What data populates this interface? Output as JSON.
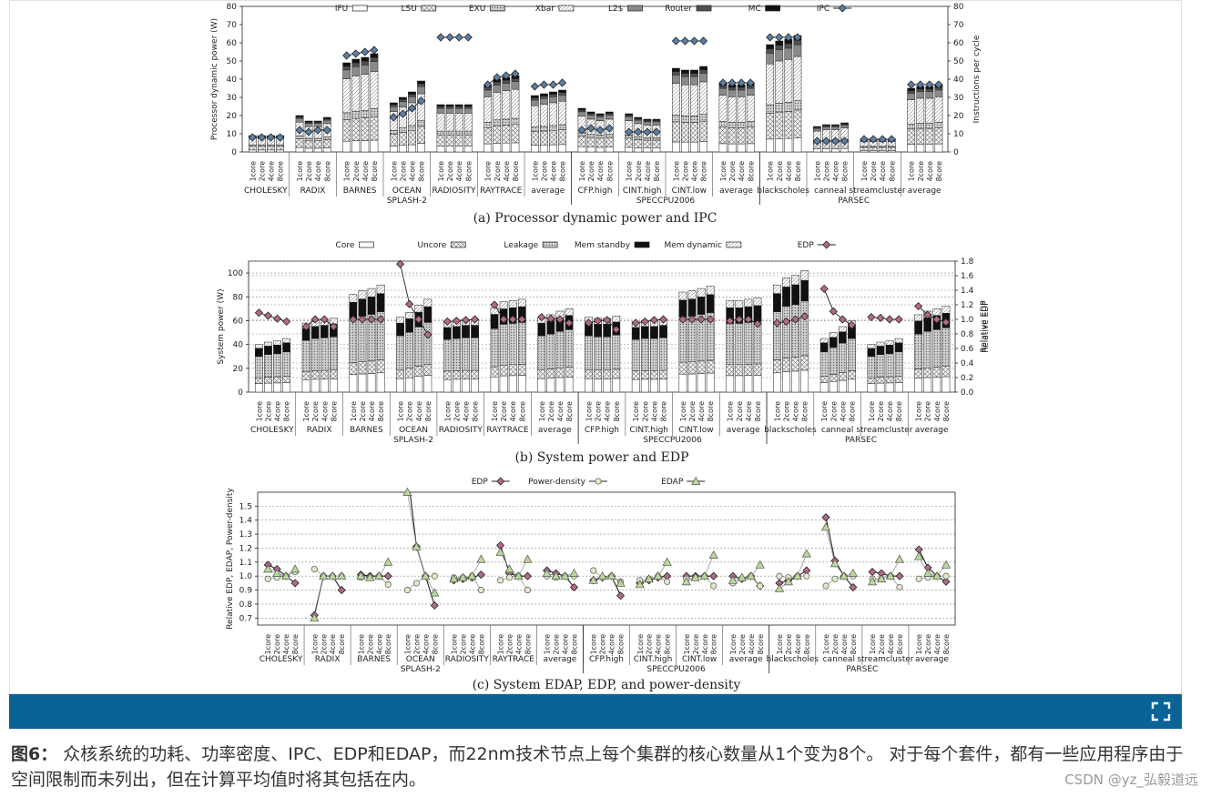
{
  "caption": {
    "label": "图6：",
    "text": " 众核系统的功耗、功率密度、IPC、EDP和EDAP，而22nm技术节点上每个集群的核心数量从1个变为8个。 对于每个套件，都有一些应用程序由于空间限制而未列出，但在计算平均值时将其包括在内。"
  },
  "watermark": "CSDN @yz_弘毅道远",
  "toolbar": {
    "fullscreen_icon": "fullscreen-icon"
  },
  "chart_data": [
    {
      "id": "a",
      "type": "bar",
      "title": "(a) Processor dynamic power and IPC",
      "ylabel": "Processor dynamic power (W)",
      "y2label": "Instructions per cycle",
      "ylim": [
        0,
        80
      ],
      "y2lim": [
        0,
        80
      ],
      "yticks": [
        0,
        10,
        20,
        30,
        40,
        50,
        60,
        70,
        80
      ],
      "y2ticks": [
        0,
        10,
        20,
        30,
        40,
        50,
        60,
        70,
        80
      ],
      "grid": false,
      "legend_position": "top",
      "core_labels": [
        "1core",
        "2core",
        "4core",
        "8core"
      ],
      "categories": [
        "CHOLESKY",
        "RADIX",
        "BARNES",
        "OCEAN",
        "RADIOSITY",
        "RAYTRACE",
        "average",
        "CFP.high",
        "CINT.high",
        "CINT.low",
        "average",
        "blackscholes",
        "canneal",
        "streamcluster",
        "average"
      ],
      "suites": [
        {
          "name": "SPLASH-2",
          "from": 0,
          "to": 6
        },
        {
          "name": "SPECCPU2006",
          "from": 7,
          "to": 10
        },
        {
          "name": "PARSEC",
          "from": 11,
          "to": 14
        }
      ],
      "series_names": [
        "IFU",
        "LSU",
        "EXU",
        "Xbar",
        "L2$",
        "Router",
        "MC"
      ],
      "series_colors": [
        "#ffffff",
        "#d8d8d8",
        "#b8b8b8",
        "#eaeaea",
        "#8a8a8a",
        "#505050",
        "#111111"
      ],
      "series_patterns": [
        "plain",
        "cross",
        "dots",
        "diag",
        "solid",
        "solid",
        "solid"
      ],
      "line_name": "IPC",
      "totals": [
        [
          9,
          9,
          9,
          9
        ],
        [
          20,
          17,
          17,
          19
        ],
        [
          49,
          51,
          52,
          54
        ],
        [
          27,
          30,
          33,
          39
        ],
        [
          26,
          26,
          26,
          26
        ],
        [
          37,
          40,
          41,
          42
        ],
        [
          31,
          32,
          33,
          34
        ],
        [
          24,
          22,
          21,
          22
        ],
        [
          21,
          19,
          18,
          18
        ],
        [
          46,
          45,
          45,
          47
        ],
        [
          38,
          37,
          37,
          38
        ],
        [
          59,
          61,
          62,
          64
        ],
        [
          14,
          15,
          15,
          16
        ],
        [
          7,
          7,
          7,
          7
        ],
        [
          35,
          36,
          36,
          37
        ]
      ],
      "ipc": [
        [
          8,
          8,
          8,
          8
        ],
        [
          12,
          11,
          12,
          12
        ],
        [
          53,
          54,
          55,
          56
        ],
        [
          19,
          21,
          24,
          28
        ],
        [
          63,
          63,
          63,
          63
        ],
        [
          37,
          41,
          42,
          43
        ],
        [
          36,
          37,
          37,
          38
        ],
        [
          12,
          13,
          12,
          13
        ],
        [
          11,
          11,
          11,
          11
        ],
        [
          61,
          61,
          61,
          61
        ],
        [
          38,
          38,
          38,
          38
        ],
        [
          63,
          63,
          63,
          63
        ],
        [
          6,
          6,
          6,
          6
        ],
        [
          7,
          7,
          7,
          7
        ],
        [
          37,
          37,
          37,
          37
        ]
      ]
    },
    {
      "id": "b",
      "type": "bar",
      "title": "(b) System power and EDP",
      "ylabel": "System power (W)",
      "y2label": "Relative EDP",
      "ylim": [
        0,
        110
      ],
      "yticks": [
        0,
        20,
        40,
        60,
        80,
        100
      ],
      "y2lim": [
        0,
        1.8
      ],
      "y2ticks": [
        "0.0",
        "0.2",
        "0.4",
        "0.6",
        "0.8",
        "1.0",
        "1.2",
        "1.4",
        "1.6",
        "1.8"
      ],
      "grid": true,
      "legend_position": "top",
      "core_labels": [
        "1core",
        "2core",
        "4core",
        "8core"
      ],
      "categories": [
        "CHOLESKY",
        "RADIX",
        "BARNES",
        "OCEAN",
        "RADIOSITY",
        "RAYTRACE",
        "average",
        "CFP.high",
        "CINT.high",
        "CINT.low",
        "average",
        "blackscholes",
        "canneal",
        "streamcluster",
        "average"
      ],
      "suites": [
        {
          "name": "SPLASH-2",
          "from": 0,
          "to": 6
        },
        {
          "name": "SPECCPU2006",
          "from": 7,
          "to": 10
        },
        {
          "name": "PARSEC",
          "from": 11,
          "to": 14
        }
      ],
      "series_names": [
        "Core",
        "Uncore",
        "Leakage",
        "Mem standby",
        "Mem dynamic"
      ],
      "series_colors": [
        "#ffffff",
        "#e4e4e4",
        "#c4c4c4",
        "#111111",
        "#f2f2f2"
      ],
      "series_patterns": [
        "plain",
        "cross",
        "dots",
        "solid",
        "diag"
      ],
      "line_name": "EDP",
      "totals": [
        [
          40,
          42,
          43,
          45
        ],
        [
          58,
          60,
          61,
          62
        ],
        [
          82,
          85,
          87,
          90
        ],
        [
          63,
          67,
          73,
          78
        ],
        [
          59,
          60,
          61,
          61
        ],
        [
          71,
          76,
          77,
          78
        ],
        [
          63,
          65,
          68,
          70
        ],
        [
          63,
          62,
          62,
          64
        ],
        [
          59,
          60,
          60,
          61
        ],
        [
          84,
          85,
          87,
          89
        ],
        [
          77,
          77,
          78,
          79
        ],
        [
          90,
          96,
          98,
          102
        ],
        [
          45,
          50,
          55,
          60
        ],
        [
          40,
          42,
          43,
          45
        ],
        [
          65,
          68,
          70,
          72
        ]
      ],
      "edp": [
        [
          1.09,
          1.05,
          1.01,
          0.97
        ],
        [
          0.9,
          1.0,
          1.0,
          0.9
        ],
        [
          1.0,
          1.0,
          1.0,
          1.0
        ],
        [
          1.76,
          1.21,
          1.0,
          0.79
        ],
        [
          0.97,
          0.98,
          0.99,
          1.0
        ],
        [
          1.2,
          1.0,
          1.0,
          1.0
        ],
        [
          1.03,
          1.01,
          1.0,
          0.95
        ],
        [
          0.95,
          0.98,
          0.99,
          0.86
        ],
        [
          0.95,
          0.97,
          0.99,
          1.0
        ],
        [
          1.0,
          1.0,
          1.0,
          1.0
        ],
        [
          0.98,
          1.0,
          1.0,
          0.94
        ],
        [
          0.95,
          0.97,
          1.0,
          1.04
        ],
        [
          1.42,
          1.11,
          1.0,
          0.92
        ],
        [
          1.03,
          1.02,
          1.0,
          1.0
        ],
        [
          1.18,
          1.06,
          1.0,
          0.96
        ]
      ]
    },
    {
      "id": "c",
      "type": "line",
      "title": "(c) System EDAP, EDP, and power-density",
      "ylabel": "Relative EDP, EDAP, Power-density",
      "ylim": [
        0.65,
        1.6
      ],
      "yticks": [
        "0.7",
        "0.8",
        "0.9",
        "1.0",
        "1.1",
        "1.2",
        "1.3",
        "1.4",
        "1.5"
      ],
      "grid": true,
      "legend_position": "top",
      "core_labels": [
        "1core",
        "2core",
        "4core",
        "8core"
      ],
      "categories": [
        "CHOLESKY",
        "RADIX",
        "BARNES",
        "OCEAN",
        "RADIOSITY",
        "RAYTRACE",
        "average",
        "CFP.high",
        "CINT.high",
        "CINT.low",
        "average",
        "blackscholes",
        "canneal",
        "streamcluster",
        "average"
      ],
      "suites": [
        {
          "name": "SPLASH-2",
          "from": 0,
          "to": 6
        },
        {
          "name": "SPECCPU2006",
          "from": 7,
          "to": 10
        },
        {
          "name": "PARSEC",
          "from": 11,
          "to": 14
        }
      ],
      "series": [
        {
          "name": "EDP",
          "values": [
            [
              1.08,
              1.05,
              1.0,
              0.95
            ],
            [
              0.72,
              1.0,
              1.0,
              0.9
            ],
            [
              1.01,
              1.0,
              1.0,
              1.0
            ],
            [
              1.76,
              1.21,
              1.0,
              0.79
            ],
            [
              0.97,
              0.98,
              0.99,
              1.01
            ],
            [
              1.22,
              1.02,
              1.0,
              1.0
            ],
            [
              1.04,
              1.02,
              1.0,
              0.92
            ],
            [
              0.97,
              0.99,
              1.0,
              0.86
            ],
            [
              0.95,
              0.97,
              0.99,
              1.0
            ],
            [
              1.0,
              1.0,
              1.0,
              1.0
            ],
            [
              1.0,
              0.98,
              1.0,
              0.93
            ],
            [
              0.95,
              0.97,
              1.0,
              1.04
            ],
            [
              1.42,
              1.11,
              1.0,
              0.92
            ],
            [
              1.03,
              1.02,
              1.0,
              1.0
            ],
            [
              1.19,
              1.06,
              1.0,
              0.96
            ]
          ]
        },
        {
          "name": "Power-density",
          "values": [
            [
              0.98,
              0.99,
              1.0,
              1.03
            ],
            [
              1.05,
              1.0,
              1.0,
              1.0
            ],
            [
              0.99,
              0.99,
              1.0,
              0.94
            ],
            [
              0.9,
              0.95,
              1.0,
              1.0
            ],
            [
              0.99,
              0.99,
              1.0,
              0.9
            ],
            [
              0.97,
              0.99,
              1.0,
              0.9
            ],
            [
              1.0,
              0.99,
              1.0,
              1.0
            ],
            [
              1.04,
              0.99,
              1.0,
              0.96
            ],
            [
              0.97,
              0.98,
              1.0,
              0.96
            ],
            [
              0.98,
              0.99,
              1.0,
              0.93
            ],
            [
              0.95,
              0.98,
              1.0,
              0.93
            ],
            [
              1.0,
              0.99,
              1.0,
              1.0
            ],
            [
              0.93,
              0.98,
              1.0,
              1.0
            ],
            [
              0.98,
              0.98,
              1.0,
              0.92
            ],
            [
              0.98,
              0.99,
              1.0,
              1.0
            ]
          ]
        },
        {
          "name": "EDAP",
          "values": [
            [
              1.05,
              1.02,
              1.0,
              1.05
            ],
            [
              0.7,
              1.0,
              1.0,
              1.0
            ],
            [
              1.0,
              0.99,
              1.0,
              1.1
            ],
            [
              1.6,
              1.21,
              1.0,
              0.88
            ],
            [
              0.98,
              0.99,
              1.0,
              1.12
            ],
            [
              1.17,
              1.05,
              1.0,
              1.12
            ],
            [
              1.02,
              1.0,
              1.0,
              1.02
            ],
            [
              0.97,
              1.0,
              1.0,
              0.95
            ],
            [
              0.94,
              0.98,
              1.0,
              1.1
            ],
            [
              0.96,
              0.99,
              1.0,
              1.15
            ],
            [
              0.97,
              0.99,
              1.0,
              1.08
            ],
            [
              0.91,
              0.96,
              1.0,
              1.16
            ],
            [
              1.35,
              1.09,
              1.0,
              1.02
            ],
            [
              0.96,
              0.98,
              1.0,
              1.12
            ],
            [
              1.14,
              1.02,
              1.0,
              1.08
            ]
          ]
        }
      ]
    }
  ]
}
